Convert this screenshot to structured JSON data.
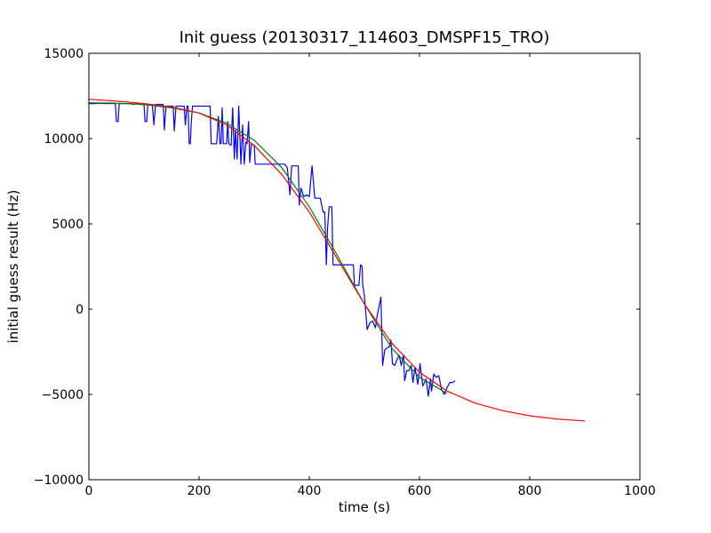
{
  "chart_data": {
    "type": "line",
    "title": "Init guess (20130317_114603_DMSPF15_TRO)",
    "xlabel": "time (s)",
    "ylabel": "initial guess result (Hz)",
    "xlim": [
      0,
      1000
    ],
    "ylim": [
      -10000,
      15000
    ],
    "xticks": [
      0,
      200,
      400,
      600,
      800,
      1000
    ],
    "yticks": [
      -10000,
      -5000,
      0,
      5000,
      10000,
      15000
    ],
    "xtick_labels": [
      "0",
      "200",
      "400",
      "600",
      "800",
      "1000"
    ],
    "ytick_labels": [
      "−10000",
      "−5000",
      "0",
      "5000",
      "10000",
      "15000"
    ],
    "grid": false,
    "legend": "none",
    "series": [
      {
        "color": "#0000ff",
        "points": [
          [
            0,
            12050
          ],
          [
            10,
            12050
          ],
          [
            20,
            12080
          ],
          [
            30,
            12050
          ],
          [
            40,
            12060
          ],
          [
            48,
            12050
          ],
          [
            50,
            11000
          ],
          [
            53,
            11000
          ],
          [
            55,
            12050
          ],
          [
            75,
            12050
          ],
          [
            80,
            12000
          ],
          [
            85,
            12050
          ],
          [
            95,
            12000
          ],
          [
            100,
            12000
          ],
          [
            102,
            11000
          ],
          [
            105,
            11000
          ],
          [
            107,
            12000
          ],
          [
            115,
            12000
          ],
          [
            118,
            10800
          ],
          [
            121,
            12000
          ],
          [
            135,
            12000
          ],
          [
            137,
            10500
          ],
          [
            140,
            11900
          ],
          [
            153,
            11900
          ],
          [
            155,
            10450
          ],
          [
            158,
            11900
          ],
          [
            173,
            11900
          ],
          [
            175,
            10800
          ],
          [
            178,
            11900
          ],
          [
            180,
            11900
          ],
          [
            182,
            9700
          ],
          [
            184,
            9700
          ],
          [
            186,
            11000
          ],
          [
            188,
            11900
          ],
          [
            220,
            11900
          ],
          [
            222,
            9700
          ],
          [
            232,
            9700
          ],
          [
            235,
            11300
          ],
          [
            238,
            9700
          ],
          [
            240,
            9700
          ],
          [
            242,
            11800
          ],
          [
            244,
            9700
          ],
          [
            250,
            9700
          ],
          [
            252,
            11000
          ],
          [
            254,
            9700
          ],
          [
            258,
            9600
          ],
          [
            261,
            11800
          ],
          [
            264,
            8800
          ],
          [
            266,
            10500
          ],
          [
            269,
            8800
          ],
          [
            272,
            11900
          ],
          [
            276,
            8500
          ],
          [
            279,
            10800
          ],
          [
            282,
            8500
          ],
          [
            285,
            9800
          ],
          [
            287,
            9700
          ],
          [
            290,
            11000
          ],
          [
            292,
            8600
          ],
          [
            295,
            9700
          ],
          [
            300,
            9600
          ],
          [
            302,
            8500
          ],
          [
            355,
            8500
          ],
          [
            360,
            8300
          ],
          [
            365,
            6700
          ],
          [
            368,
            8400
          ],
          [
            380,
            8400
          ],
          [
            382,
            6100
          ],
          [
            385,
            7100
          ],
          [
            390,
            6600
          ],
          [
            395,
            6700
          ],
          [
            400,
            6600
          ],
          [
            405,
            8400
          ],
          [
            410,
            6500
          ],
          [
            420,
            6500
          ],
          [
            425,
            5700
          ],
          [
            428,
            5700
          ],
          [
            431,
            2600
          ],
          [
            433,
            4700
          ],
          [
            436,
            6000
          ],
          [
            441,
            6000
          ],
          [
            443,
            2600
          ],
          [
            480,
            2600
          ],
          [
            482,
            1400
          ],
          [
            490,
            1400
          ],
          [
            493,
            2600
          ],
          [
            496,
            2500
          ],
          [
            497,
            1400
          ],
          [
            500,
            800
          ],
          [
            505,
            -1200
          ],
          [
            510,
            -800
          ],
          [
            515,
            -700
          ],
          [
            520,
            -1100
          ],
          [
            523,
            -400
          ],
          [
            530,
            700
          ],
          [
            533,
            -3300
          ],
          [
            537,
            -2400
          ],
          [
            540,
            -2300
          ],
          [
            545,
            -2200
          ],
          [
            548,
            -1800
          ],
          [
            551,
            -3200
          ],
          [
            555,
            -3300
          ],
          [
            560,
            -2900
          ],
          [
            563,
            -2700
          ],
          [
            567,
            -3300
          ],
          [
            571,
            -2700
          ],
          [
            573,
            -4200
          ],
          [
            577,
            -3600
          ],
          [
            581,
            -3600
          ],
          [
            585,
            -3300
          ],
          [
            588,
            -4300
          ],
          [
            592,
            -3400
          ],
          [
            597,
            -4400
          ],
          [
            601,
            -3200
          ],
          [
            606,
            -4500
          ],
          [
            612,
            -4100
          ],
          [
            616,
            -5100
          ],
          [
            620,
            -4100
          ],
          [
            622,
            -4800
          ],
          [
            626,
            -3800
          ],
          [
            630,
            -4000
          ],
          [
            635,
            -3900
          ],
          [
            640,
            -4700
          ],
          [
            645,
            -5000
          ],
          [
            650,
            -4600
          ],
          [
            655,
            -4300
          ],
          [
            660,
            -4300
          ],
          [
            665,
            -4200
          ]
        ]
      },
      {
        "color": "#008000",
        "points": [
          [
            0,
            12100
          ],
          [
            50,
            12080
          ],
          [
            100,
            12000
          ],
          [
            150,
            11800
          ],
          [
            200,
            11500
          ],
          [
            250,
            10900
          ],
          [
            300,
            9900
          ],
          [
            350,
            8300
          ],
          [
            400,
            6000
          ],
          [
            450,
            3200
          ],
          [
            500,
            300
          ],
          [
            550,
            -2300
          ],
          [
            600,
            -4000
          ],
          [
            640,
            -4750
          ],
          [
            650,
            -4950
          ]
        ]
      },
      {
        "color": "#ff0000",
        "points": [
          [
            0,
            12300
          ],
          [
            50,
            12200
          ],
          [
            100,
            12050
          ],
          [
            150,
            11850
          ],
          [
            200,
            11500
          ],
          [
            250,
            10800
          ],
          [
            300,
            9600
          ],
          [
            350,
            7900
          ],
          [
            400,
            5700
          ],
          [
            450,
            3000
          ],
          [
            500,
            300
          ],
          [
            550,
            -2000
          ],
          [
            600,
            -3700
          ],
          [
            650,
            -4800
          ],
          [
            700,
            -5500
          ],
          [
            750,
            -5950
          ],
          [
            800,
            -6250
          ],
          [
            850,
            -6450
          ],
          [
            900,
            -6550
          ]
        ]
      }
    ]
  }
}
